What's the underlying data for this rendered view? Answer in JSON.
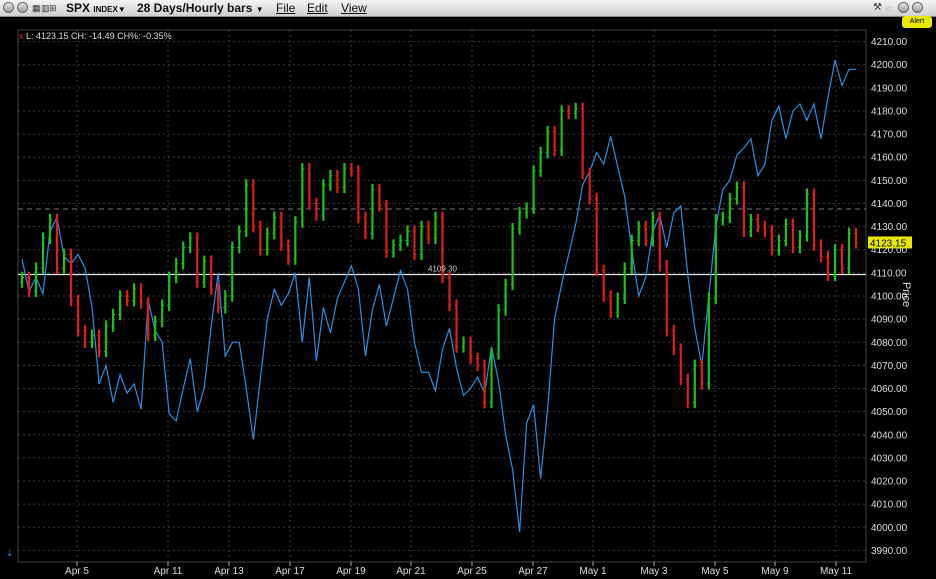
{
  "window": {
    "symbol": "SPX",
    "symbol_suffix": "INDEX",
    "period": "28 Days/Hourly bars",
    "menus": [
      "File",
      "Edit",
      "View"
    ],
    "alert_label": "Alert"
  },
  "legend": {
    "close_icon": "x",
    "text": "L: 4123.15 CH: -14.49 CH%: -0.35%"
  },
  "chart_data": {
    "type": "candlestick",
    "ylabel": "Price",
    "ylim": [
      3985,
      4215
    ],
    "yticks": [
      "4210.00",
      "4200.00",
      "4190.00",
      "4180.00",
      "4170.00",
      "4160.00",
      "4150.00",
      "4140.00",
      "4130.00",
      "4120.00",
      "4110.00",
      "4100.00",
      "4090.00",
      "4080.00",
      "4070.00",
      "4060.00",
      "4050.00",
      "4040.00",
      "4030.00",
      "4020.00",
      "4010.00",
      "4000.00",
      "3990.00"
    ],
    "xticks": [
      "Apr 5",
      "Apr 11",
      "Apr 13",
      "Apr 17",
      "Apr 19",
      "Apr 21",
      "Apr 25",
      "Apr 27",
      "May 1",
      "May 3",
      "May 5",
      "May 9",
      "May 11"
    ],
    "last_price_label": "4123.15",
    "last_price": 4123.15,
    "reference_line_label": "4109.30",
    "reference_line_value": 4109.3,
    "dashed_line_value": 4137.6,
    "grid": true,
    "colors": {
      "up": "#19c219",
      "down": "#e21b1b",
      "overlay": "#2b8fe6",
      "grid": "#3a3a3a",
      "last_price_bg": "#e8e800"
    },
    "price_series": [
      4108,
      4102,
      4112,
      4125,
      4133,
      4112,
      4118,
      4098,
      4085,
      4080,
      4083,
      4076,
      4087,
      4092,
      4100,
      4098,
      4103,
      4097,
      4083,
      4089,
      4096,
      4108,
      4114,
      4121,
      4125,
      4106,
      4115,
      4103,
      4095,
      4100,
      4121,
      4128,
      4148,
      4130,
      4120,
      4127,
      4134,
      4122,
      4116,
      4132,
      4155,
      4140,
      4135,
      4148,
      4152,
      4147,
      4155,
      4154,
      4134,
      4127,
      4146,
      4139,
      4119,
      4122,
      4124,
      4128,
      4118,
      4130,
      4125,
      4134,
      4108,
      4096,
      4078,
      4080,
      4073,
      4070,
      4054,
      4075,
      4094,
      4105,
      4129,
      4136,
      4138,
      4154,
      4162,
      4171,
      4163,
      4180,
      4179,
      4181,
      4153,
      4142,
      4111,
      4100,
      4093,
      4099,
      4112,
      4124,
      4130,
      4124,
      4134,
      4113,
      4085,
      4077,
      4064,
      4054,
      4070,
      4062,
      4099,
      4133,
      4134,
      4142,
      4147,
      4128,
      4133,
      4130,
      4128,
      4120,
      4124,
      4131,
      4121,
      4126,
      4144,
      4122,
      4117,
      4109,
      4120,
      4112,
      4127,
      4123
    ],
    "overlay_series": [
      4116,
      4102,
      4108,
      4101,
      4128,
      4134,
      4117,
      4114,
      4118,
      4112,
      4095,
      4062,
      4070,
      4054,
      4066,
      4058,
      4062,
      4051,
      4098,
      4085,
      4080,
      4049,
      4046,
      4060,
      4073,
      4050,
      4060,
      4087,
      4110,
      4074,
      4080,
      4080,
      4060,
      4038,
      4064,
      4090,
      4103,
      4096,
      4101,
      4110,
      4080,
      4108,
      4072,
      4095,
      4084,
      4099,
      4106,
      4113,
      4103,
      4074,
      4094,
      4105,
      4087,
      4099,
      4111,
      4103,
      4080,
      4067,
      4067,
      4059,
      4077,
      4086,
      4069,
      4057,
      4060,
      4065,
      4058,
      4078,
      4063,
      4040,
      4025,
      3998,
      4045,
      4053,
      4021,
      4051,
      4090,
      4105,
      4118,
      4131,
      4148,
      4154,
      4162,
      4157,
      4169,
      4156,
      4143,
      4120,
      4100,
      4108,
      4128,
      4135,
      4121,
      4136,
      4139,
      4109,
      4086,
      4070,
      4100,
      4130,
      4146,
      4150,
      4161,
      4164,
      4168,
      4152,
      4157,
      4176,
      4182,
      4168,
      4180,
      4183,
      4176,
      4183,
      4168,
      4186,
      4202,
      4191,
      4198,
      4198
    ]
  }
}
